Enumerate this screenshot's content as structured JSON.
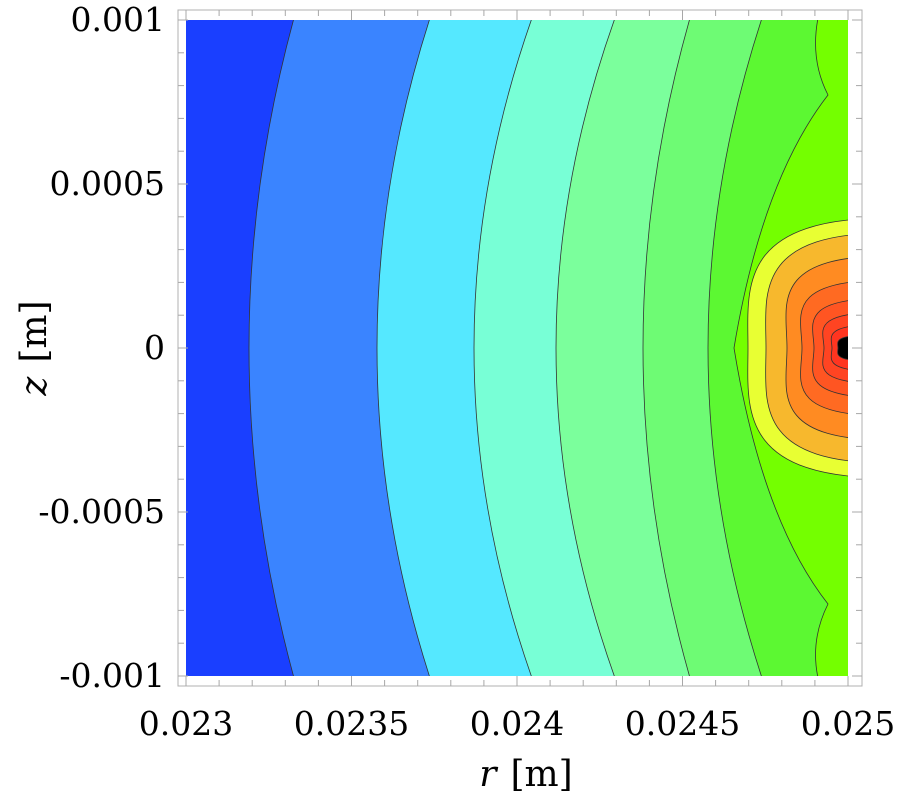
{
  "chart_data": {
    "type": "heatmap",
    "subtype": "filled-contour",
    "title": "",
    "xlabel": {
      "var": "r",
      "unit": "[m]"
    },
    "ylabel": {
      "var": "z",
      "unit": "[m]"
    },
    "xlim": [
      0.023,
      0.025
    ],
    "ylim": [
      -0.001,
      0.001
    ],
    "x_ticks": [
      "0.023",
      "0.0235",
      "0.024",
      "0.0245",
      "0.025"
    ],
    "y_ticks": [
      "-0.001",
      "-0.0005",
      "0",
      "0.0005",
      "0.001"
    ],
    "x_tick_values": [
      0.023,
      0.0235,
      0.024,
      0.0245,
      0.025
    ],
    "y_tick_values": [
      -0.001,
      -0.0005,
      0,
      0.0005,
      0.001
    ],
    "hot_spot": {
      "r": 0.025,
      "z": 0
    },
    "level_colors": [
      "#1a3fff",
      "#3a84ff",
      "#55e8ff",
      "#78ffd6",
      "#7bff9c",
      "#6efb74",
      "#5cf832",
      "#74ff00",
      "#e8ff33",
      "#f7b82d",
      "#ff8b22",
      "#ff6a22",
      "#ff5522",
      "#ff4422",
      "#ff3520"
    ],
    "grid": false,
    "legend": "none"
  }
}
